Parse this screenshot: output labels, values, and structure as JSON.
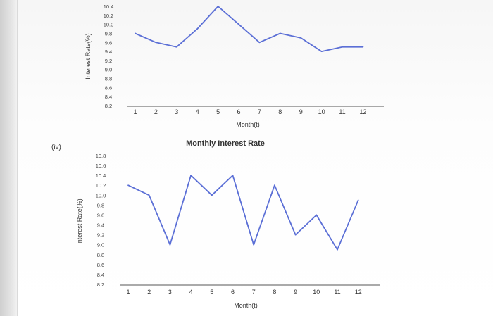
{
  "part_label": "(iv)",
  "chart_data": [
    {
      "type": "line",
      "title": "",
      "xlabel": "Month(t)",
      "ylabel": "Interest Rate(%)",
      "x": [
        1,
        2,
        3,
        4,
        5,
        6,
        7,
        8,
        9,
        10,
        11,
        12
      ],
      "yticks": [
        "10.4",
        "10.2",
        "10.0",
        "9.8",
        "9.6",
        "9.4",
        "9.2",
        "9.0",
        "8.8",
        "8.6",
        "8.4",
        "8.2"
      ],
      "ylim": [
        8.2,
        10.4
      ],
      "series": [
        {
          "values": [
            9.8,
            9.6,
            9.5,
            9.9,
            10.4,
            10.0,
            9.6,
            9.8,
            9.7,
            9.4,
            9.5,
            9.5
          ]
        }
      ],
      "grid": false,
      "line_color": "#5b6fd6"
    },
    {
      "type": "line",
      "title": "Monthly Interest Rate",
      "xlabel": "Month(t)",
      "ylabel": "Interest Rate(%)",
      "x": [
        1,
        2,
        3,
        4,
        5,
        6,
        7,
        8,
        9,
        10,
        11,
        12
      ],
      "yticks": [
        "10.8",
        "10.6",
        "10.4",
        "10.2",
        "10.0",
        "9.8",
        "9.6",
        "9.4",
        "9.2",
        "9.0",
        "8.8",
        "8.6",
        "8.4",
        "8.2"
      ],
      "ylim": [
        8.2,
        10.8
      ],
      "series": [
        {
          "values": [
            10.2,
            10.0,
            9.0,
            10.4,
            10.0,
            10.4,
            9.0,
            10.2,
            9.2,
            9.6,
            8.9,
            9.9
          ]
        }
      ],
      "grid": false,
      "line_color": "#5b6fd6"
    }
  ]
}
